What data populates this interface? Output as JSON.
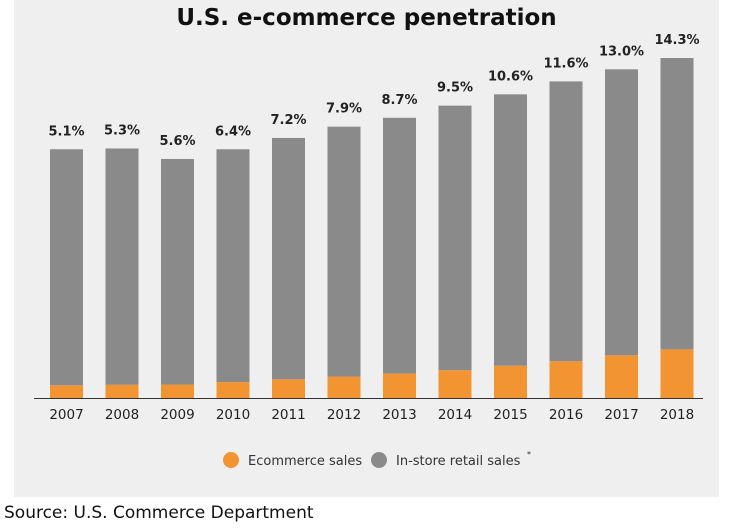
{
  "chart_data": {
    "type": "bar",
    "stacked": true,
    "title": "U.S. e-commerce penetration",
    "source": "Source: U.S. Commerce Department",
    "categories": [
      "2007",
      "2008",
      "2009",
      "2010",
      "2011",
      "2012",
      "2013",
      "2014",
      "2015",
      "2016",
      "2017",
      "2018"
    ],
    "penetration_labels": [
      "5.1%",
      "5.3%",
      "5.6%",
      "6.4%",
      "7.2%",
      "7.9%",
      "8.7%",
      "9.5%",
      "10.6%",
      "11.6%",
      "13.0%",
      "14.3%"
    ],
    "totals": [
      3.08,
      3.09,
      2.96,
      3.08,
      3.22,
      3.36,
      3.47,
      3.62,
      3.76,
      3.92,
      4.07,
      4.21
    ],
    "series": [
      {
        "name": "Ecommerce sales",
        "color": "#f39433",
        "values": [
          0.157,
          0.164,
          0.166,
          0.197,
          0.232,
          0.265,
          0.302,
          0.344,
          0.399,
          0.455,
          0.529,
          0.602
        ]
      },
      {
        "name": "In-store retail sales",
        "color": "#8a8a8a",
        "values": [
          2.923,
          2.926,
          2.794,
          2.883,
          2.988,
          3.095,
          3.168,
          3.276,
          3.361,
          3.465,
          3.541,
          3.608
        ]
      }
    ],
    "legend": [
      {
        "label": "Ecommerce sales",
        "marker": "",
        "color": "#f39433"
      },
      {
        "label": "In-store retail sales",
        "marker": "*",
        "color": "#8a8a8a"
      }
    ],
    "legend_position": "bottom",
    "ylim": [
      0,
      4.21
    ]
  }
}
